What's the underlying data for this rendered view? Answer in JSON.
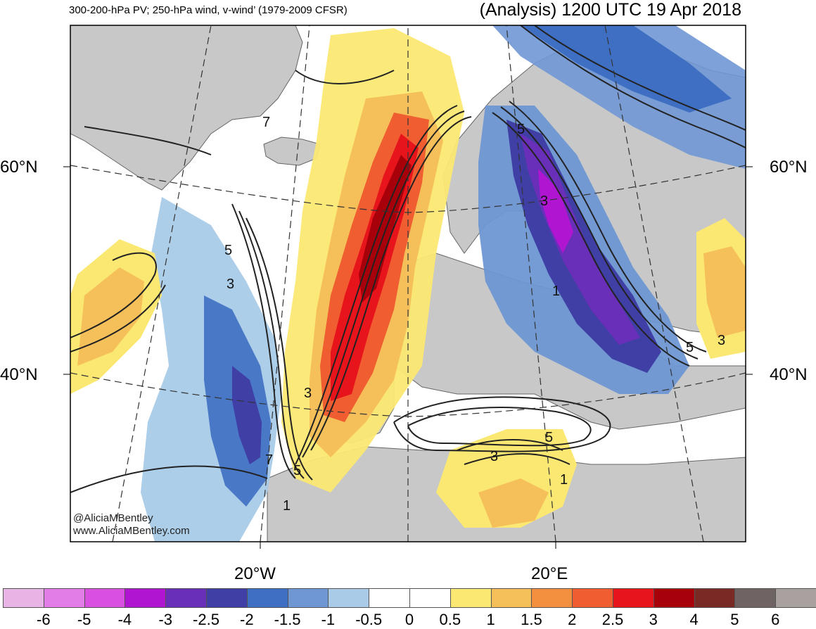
{
  "header": {
    "title_left": "300-200-hPa PV; 250-hPa wind, v-wind’ (1979-2009 CFSR)",
    "title_right": "(Analysis) 1200 UTC 19 Apr 2018"
  },
  "axes": {
    "lat_labels": [
      "60°N",
      "40°N"
    ],
    "lon_labels": [
      "20°W",
      "20°E"
    ]
  },
  "credits": {
    "handle": "@AliciaMBentley",
    "website": "www.AliciaMBentley.com"
  },
  "contour_labels": [
    "7",
    "5",
    "3",
    "1",
    "3",
    "5",
    "7",
    "5",
    "3",
    "1",
    "5",
    "3",
    "5",
    "3",
    "1"
  ],
  "colorbar": {
    "ticks": [
      "-6",
      "-5",
      "-4",
      "-3",
      "-2.5",
      "-2",
      "-1.5",
      "-1",
      "-0.5",
      "0",
      "0.5",
      "1",
      "1.5",
      "2",
      "2.5",
      "3",
      "4",
      "5",
      "6"
    ],
    "colors": [
      "#e8b4e6",
      "#e27de8",
      "#d94fe0",
      "#b016d1",
      "#6a2fb8",
      "#3f3fa5",
      "#3e6fc2",
      "#6f97d4",
      "#a9cbe8",
      "#ffffff",
      "#ffffff",
      "#fbe873",
      "#f5c05a",
      "#f39040",
      "#f05d30",
      "#e8141c",
      "#a8000b",
      "#7a2a24",
      "#6f6363",
      "#a9a0a0"
    ]
  },
  "colors": {
    "land": "#c8c8c8",
    "ocean": "#ffffff",
    "contour": "#222222"
  }
}
